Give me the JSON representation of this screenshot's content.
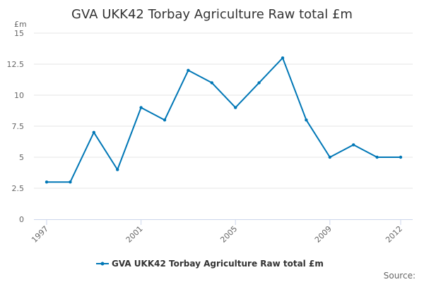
{
  "chart_data": {
    "type": "line",
    "title": "GVA UKK42 Torbay Agriculture Raw total £m",
    "ylabel": "£m",
    "x": [
      1997,
      1998,
      1999,
      2000,
      2001,
      2002,
      2003,
      2004,
      2005,
      2006,
      2007,
      2008,
      2009,
      2010,
      2011,
      2012
    ],
    "xticks": [
      "1997",
      "2001",
      "2005",
      "2009",
      "2012"
    ],
    "yticks": [
      "0",
      "2.5",
      "5",
      "7.5",
      "10",
      "12.5",
      "15"
    ],
    "ylim": [
      0,
      15
    ],
    "grid": true,
    "legend_position": "bottom",
    "series": [
      {
        "name": "GVA UKK42 Torbay Agriculture Raw total £m",
        "color": "#0077b6",
        "values": [
          3,
          3,
          7,
          4,
          9,
          8,
          12,
          11,
          9,
          11,
          13,
          8,
          5,
          6,
          5,
          5
        ]
      }
    ],
    "source": "Source:"
  }
}
